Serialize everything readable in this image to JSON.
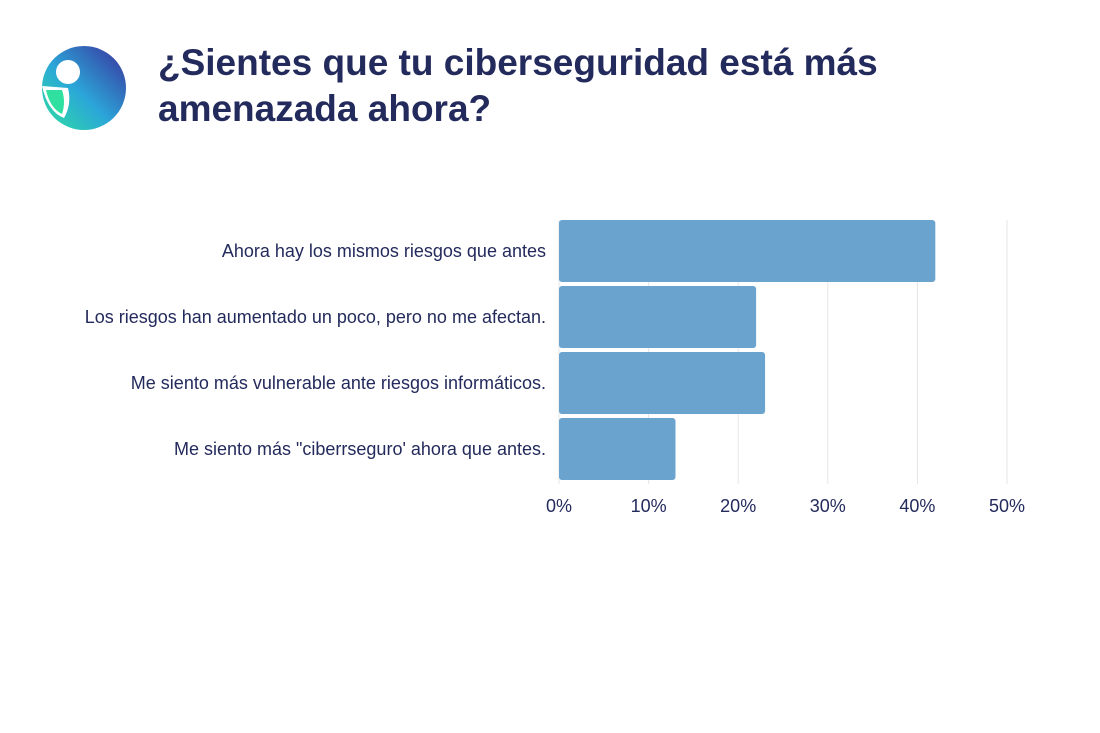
{
  "header": {
    "title": "¿Sientes que tu ciberseguridad está más amenazada ahora?",
    "logo_icon": "brand-logo-icon"
  },
  "colors": {
    "bar": "#6aa3cd",
    "grid": "#e6e6e6",
    "text": "#232a5c",
    "logo_gradient": [
      "#2fe0a0",
      "#2ba6d9",
      "#3a2f9a"
    ]
  },
  "chart_data": {
    "type": "bar",
    "orientation": "horizontal",
    "title": "¿Sientes que tu ciberseguridad está más amenazada ahora?",
    "categories": [
      "Ahora hay los mismos riesgos que antes",
      "Los riesgos han aumentado un poco, pero no me afectan.",
      "Me siento más vulnerable ante riesgos informáticos.",
      "Me siento más \"ciberrseguro' ahora que antes."
    ],
    "values": [
      42,
      22,
      23,
      13
    ],
    "unit": "%",
    "xlim": [
      0,
      50
    ],
    "ticks": [
      0,
      10,
      20,
      30,
      40,
      50
    ],
    "tick_labels": [
      "0%",
      "10%",
      "20%",
      "30%",
      "40%",
      "50%"
    ],
    "grid": true,
    "legend": "none"
  }
}
